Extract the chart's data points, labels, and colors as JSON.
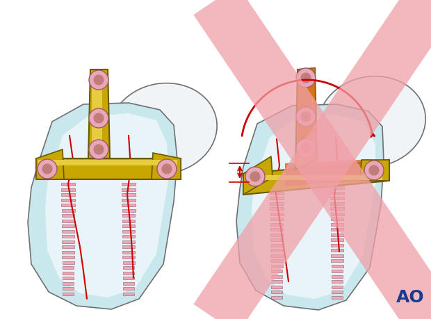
{
  "fig_width": 6.2,
  "fig_height": 4.59,
  "dpi": 100,
  "bg_color": "#ffffff",
  "bone_light": "#e8f4f7",
  "bone_mid": "#c8e8ee",
  "bone_dark": "#a0c8d4",
  "bone_outline": "#707070",
  "bone_shadow": "#b0c8cc",
  "head_color": "#f0f4f6",
  "head_outline": "#888888",
  "plate_gold": "#c8a800",
  "plate_gold_light": "#e8cc40",
  "plate_gold_dark": "#907800",
  "plate_outline": "#6a5800",
  "screw_pink": "#e8a8b8",
  "screw_dark": "#c07888",
  "screw_outline": "#a05868",
  "fracture_red": "#cc0000",
  "cross_pink": "#f0a0a8",
  "cross_alpha": 0.75,
  "arrow_red": "#cc0000",
  "orange_highlight": "#d86020",
  "ao_color": "#1a3a8c",
  "ao_fontsize": 18
}
